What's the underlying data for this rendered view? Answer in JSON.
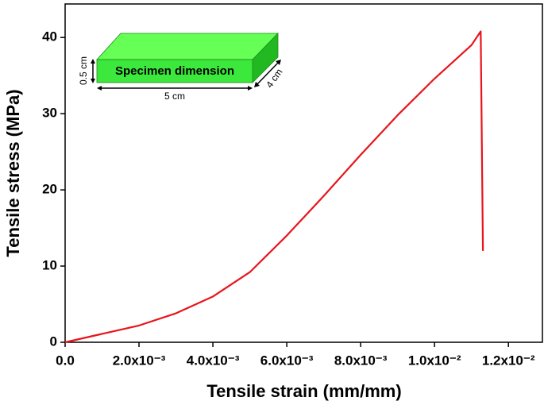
{
  "chart_data": {
    "type": "line",
    "x_label": "Tensile strain (mm/mm)",
    "y_label": "Tensile stress (MPa)",
    "x": [
      0,
      0.001,
      0.002,
      0.003,
      0.004,
      0.005,
      0.006,
      0.007,
      0.008,
      0.009,
      0.01,
      0.011,
      0.01125,
      0.01131
    ],
    "values": [
      0,
      1.1,
      2.2,
      3.8,
      6.0,
      9.2,
      14.0,
      19.2,
      24.6,
      29.8,
      34.6,
      39.0,
      40.8,
      12.0
    ],
    "color": "#e8141b",
    "xlim": [
      0,
      0.01292
    ],
    "ylim": [
      0,
      44.4
    ],
    "xticks": [
      {
        "value": 0,
        "label": "0.0"
      },
      {
        "value": 0.002,
        "label": "2.0x10⁻³"
      },
      {
        "value": 0.004,
        "label": "4.0x10⁻³"
      },
      {
        "value": 0.006,
        "label": "6.0x10⁻³"
      },
      {
        "value": 0.008,
        "label": "8.0x10⁻³"
      },
      {
        "value": 0.01,
        "label": "1.0x10⁻²"
      },
      {
        "value": 0.012,
        "label": "1.2x10⁻²"
      }
    ],
    "yticks": [
      0,
      10,
      20,
      30,
      40
    ],
    "annotations": [
      "Specimen dimension",
      "0.5 cm",
      "5 cm",
      "4 cm"
    ]
  }
}
